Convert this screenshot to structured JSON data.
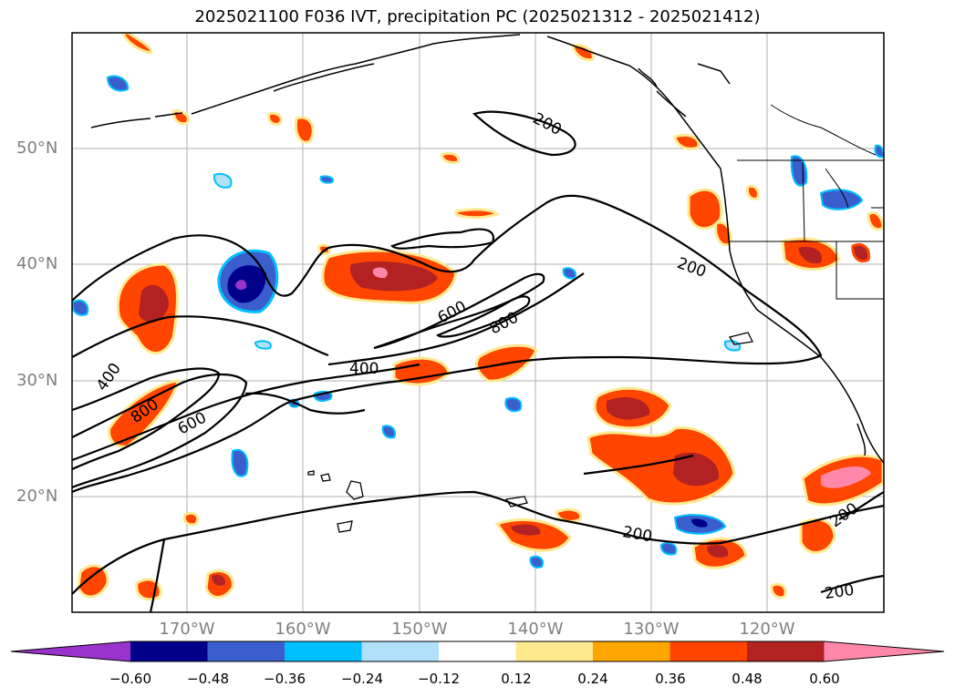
{
  "title": "2025021100 F036 IVT, precipitation PC (2025021312 - 2025021412)",
  "map": {
    "lat_labels": [
      "50°N",
      "40°N",
      "30°N",
      "20°N"
    ],
    "lon_labels": [
      "170°W",
      "160°W",
      "150°W",
      "140°W",
      "130°W",
      "120°W"
    ],
    "contour_labels": [
      "200",
      "200",
      "200",
      "200",
      "200",
      "400",
      "400",
      "600",
      "600",
      "800",
      "800"
    ]
  },
  "colorbar": {
    "ticks": [
      "−0.60",
      "−0.48",
      "−0.36",
      "−0.24",
      "−0.12",
      "0.12",
      "0.24",
      "0.36",
      "0.48",
      "0.60"
    ],
    "colors": [
      "#9933cc",
      "#00008b",
      "#3a5fcd",
      "#00bfff",
      "#b0e0fa",
      "#ffffff",
      "#ffe98f",
      "#ffa500",
      "#ff4500",
      "#b22222",
      "#ff88aa"
    ]
  }
}
